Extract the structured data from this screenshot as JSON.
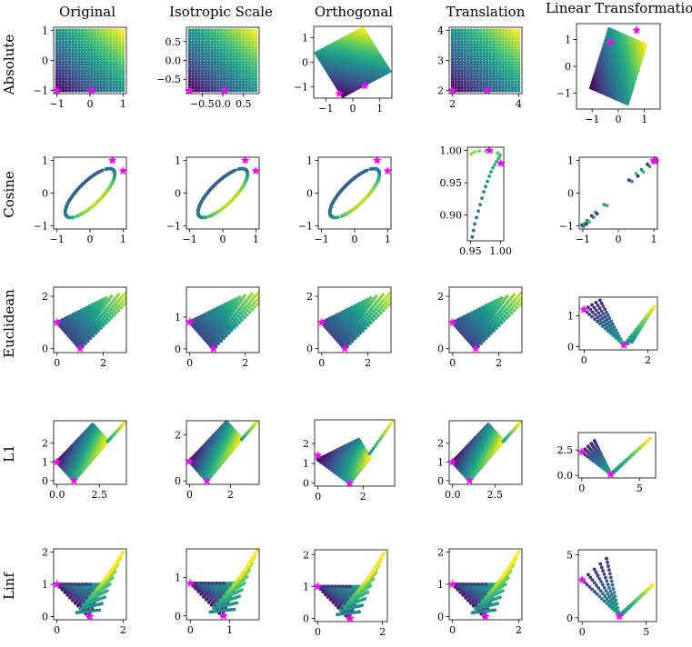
{
  "columns": [
    "Original",
    "Isotropic Scale",
    "Orthogonal",
    "Translation",
    "Linear Transformation"
  ],
  "rows": [
    "Absolute",
    "Cosine",
    "Euclidean",
    "L1",
    "Linf"
  ],
  "colors": {
    "marker": "#ff00ff",
    "colormap": "viridis"
  },
  "chart_data": [
    {
      "id": "absolute-original",
      "type": "scatter",
      "row": "Absolute",
      "column": "Original",
      "xlim": [
        -1.1,
        1.1
      ],
      "ylim": [
        -1.1,
        1.1
      ],
      "xticks": [
        -1,
        0,
        1
      ],
      "yticks": [
        -1,
        0,
        1
      ],
      "pattern": "grid",
      "grid_n": 22,
      "x_range": [
        -1,
        1
      ],
      "y_range": [
        -1,
        1
      ],
      "stars": [
        [
          -1,
          -1
        ],
        [
          0.05,
          -1
        ]
      ]
    },
    {
      "id": "absolute-isotropic",
      "type": "scatter",
      "row": "Absolute",
      "column": "Isotropic Scale",
      "xlim": [
        -0.88,
        0.88
      ],
      "ylim": [
        -0.88,
        0.88
      ],
      "xticks": [
        -0.5,
        0,
        0.5
      ],
      "yticks": [
        -0.5,
        0,
        0.5
      ],
      "xticklabels": [
        "−0.5",
        "0.0",
        "0.5"
      ],
      "yticklabels": [
        "−0.5",
        "0.0",
        "0.5"
      ],
      "pattern": "grid",
      "grid_n": 22,
      "x_range": [
        -0.8,
        0.8
      ],
      "y_range": [
        -0.8,
        0.8
      ],
      "stars": [
        [
          -0.8,
          -0.8
        ],
        [
          0.04,
          -0.8
        ]
      ]
    },
    {
      "id": "absolute-orthogonal",
      "type": "scatter",
      "row": "Absolute",
      "column": "Orthogonal",
      "xlim": [
        -1.45,
        1.45
      ],
      "ylim": [
        -1.45,
        1.45
      ],
      "xticks": [
        -1,
        0,
        1
      ],
      "yticks": [
        -1,
        0,
        1
      ],
      "pattern": "rotated-grid",
      "grid_n": 22,
      "angle_deg": 30,
      "stars": [
        [
          -0.5,
          -1.27
        ],
        [
          0.45,
          -0.95
        ]
      ]
    },
    {
      "id": "absolute-translation",
      "type": "scatter",
      "row": "Absolute",
      "column": "Translation",
      "xlim": [
        1.9,
        4.1
      ],
      "ylim": [
        1.9,
        4.1
      ],
      "xticks": [
        2,
        4
      ],
      "yticks": [
        2,
        3,
        4
      ],
      "pattern": "grid",
      "grid_n": 22,
      "x_range": [
        2,
        4
      ],
      "y_range": [
        2,
        4
      ],
      "stars": [
        [
          2,
          2
        ],
        [
          3.05,
          2
        ]
      ]
    },
    {
      "id": "absolute-linear",
      "type": "scatter",
      "row": "Absolute",
      "column": "Linear Transformation",
      "xlim": [
        -1.6,
        1.6
      ],
      "ylim": [
        -1.6,
        1.6
      ],
      "xticks": [
        -1,
        0,
        1
      ],
      "yticks": [
        -1,
        0,
        1
      ],
      "pattern": "linear-grid",
      "grid_n": 22,
      "matrix": [
        [
          0.7,
          0.35
        ],
        [
          -0.3,
          1.1
        ]
      ],
      "stars": [
        [
          -0.3,
          0.9
        ],
        [
          0.7,
          1.35
        ]
      ]
    },
    {
      "id": "cosine-original",
      "type": "scatter",
      "row": "Cosine",
      "column": "Original",
      "xlim": [
        -1.1,
        1.1
      ],
      "ylim": [
        -1.1,
        1.1
      ],
      "xticks": [
        -1,
        0,
        1
      ],
      "yticks": [
        -1,
        0,
        1
      ],
      "pattern": "ellipse",
      "ellipse": {
        "a": 1.2,
        "b": 0.42,
        "angle_deg": 45
      },
      "stars": [
        [
          0.68,
          1.0
        ],
        [
          1.0,
          0.68
        ]
      ]
    },
    {
      "id": "cosine-isotropic",
      "type": "scatter",
      "row": "Cosine",
      "column": "Isotropic Scale",
      "xlim": [
        -1.1,
        1.1
      ],
      "ylim": [
        -1.1,
        1.1
      ],
      "xticks": [
        -1,
        0,
        1
      ],
      "yticks": [
        -1,
        0,
        1
      ],
      "pattern": "ellipse",
      "ellipse": {
        "a": 1.2,
        "b": 0.42,
        "angle_deg": 45
      },
      "stars": [
        [
          0.68,
          1.0
        ],
        [
          1.0,
          0.68
        ]
      ]
    },
    {
      "id": "cosine-orthogonal",
      "type": "scatter",
      "row": "Cosine",
      "column": "Orthogonal",
      "xlim": [
        -1.1,
        1.1
      ],
      "ylim": [
        -1.1,
        1.1
      ],
      "xticks": [
        -1,
        0,
        1
      ],
      "yticks": [
        -1,
        0,
        1
      ],
      "pattern": "ellipse",
      "ellipse": {
        "a": 1.2,
        "b": 0.42,
        "angle_deg": 45
      },
      "stars": [
        [
          0.68,
          1.0
        ],
        [
          1.0,
          0.68
        ]
      ]
    },
    {
      "id": "cosine-translation",
      "type": "scatter",
      "row": "Cosine",
      "column": "Translation",
      "xlim": [
        0.945,
        1.005
      ],
      "ylim": [
        0.86,
        1.005
      ],
      "xticks": [
        0.95,
        1.0
      ],
      "yticks": [
        0.9,
        0.95,
        1.0
      ],
      "xticklabels": [
        "0.95",
        "1.00"
      ],
      "yticklabels": [
        "0.90",
        "0.95",
        "1.00"
      ],
      "pattern": "curve",
      "points": [
        [
          0.953,
          0.866
        ],
        [
          0.955,
          0.876
        ],
        [
          0.957,
          0.886
        ],
        [
          0.96,
          0.896
        ],
        [
          0.963,
          0.906
        ],
        [
          0.966,
          0.916
        ],
        [
          0.969,
          0.926
        ],
        [
          0.972,
          0.936
        ],
        [
          0.975,
          0.944
        ],
        [
          0.978,
          0.952
        ],
        [
          0.981,
          0.96
        ],
        [
          0.984,
          0.967
        ],
        [
          0.987,
          0.973
        ],
        [
          0.99,
          0.978
        ],
        [
          0.993,
          0.983
        ],
        [
          0.996,
          0.987
        ],
        [
          0.998,
          0.99
        ],
        [
          0.999,
          0.993
        ],
        [
          0.995,
          0.996
        ],
        [
          0.985,
          0.998
        ],
        [
          0.975,
          0.999
        ],
        [
          0.965,
          0.999
        ],
        [
          0.958,
          0.998
        ],
        [
          0.953,
          0.996
        ],
        [
          0.951,
          0.994
        ]
      ],
      "stars": [
        [
          0.981,
          1.0
        ],
        [
          1.0,
          0.98
        ]
      ]
    },
    {
      "id": "cosine-linear",
      "type": "scatter",
      "row": "Cosine",
      "column": "Linear Transformation",
      "xlim": [
        -1.1,
        1.1
      ],
      "ylim": [
        -1.1,
        1.1
      ],
      "xticks": [
        -1,
        0,
        1
      ],
      "yticks": [
        -1,
        0,
        1
      ],
      "pattern": "diagonal",
      "points": [
        [
          -1.02,
          -0.98
        ],
        [
          -0.98,
          -1.02
        ],
        [
          -0.95,
          -0.93
        ],
        [
          -0.9,
          -0.95
        ],
        [
          -0.88,
          -0.84
        ],
        [
          -0.82,
          -0.88
        ],
        [
          -0.75,
          -0.7
        ],
        [
          -0.7,
          -0.74
        ],
        [
          -0.65,
          -0.58
        ],
        [
          -0.6,
          -0.63
        ],
        [
          -0.4,
          -0.35
        ],
        [
          -0.32,
          -0.38
        ],
        [
          0.3,
          0.4
        ],
        [
          0.38,
          0.36
        ],
        [
          0.5,
          0.6
        ],
        [
          0.55,
          0.52
        ],
        [
          0.65,
          0.72
        ],
        [
          0.7,
          0.65
        ],
        [
          0.82,
          0.88
        ],
        [
          0.88,
          0.82
        ],
        [
          0.95,
          0.98
        ],
        [
          1.0,
          0.95
        ],
        [
          1.02,
          1.0
        ]
      ],
      "stars": [
        [
          1.0,
          1.0
        ],
        [
          1.05,
          0.98
        ]
      ]
    },
    {
      "id": "euclidean-original",
      "type": "scatter",
      "row": "Euclidean",
      "column": "Original",
      "xlim": [
        -0.15,
        3.0
      ],
      "ylim": [
        -0.15,
        2.35
      ],
      "xticks": [
        0,
        2
      ],
      "yticks": [
        0,
        2
      ],
      "pattern": "euclid",
      "shape": {
        "sx": 1.0,
        "tip": [
          2.9,
          2.25
        ],
        "notch": [
          2.05,
          2.2
        ]
      },
      "stars": [
        [
          0,
          1.0
        ],
        [
          1.0,
          0
        ]
      ]
    },
    {
      "id": "euclidean-isotropic",
      "type": "scatter",
      "row": "Euclidean",
      "column": "Isotropic Scale",
      "xlim": [
        -0.12,
        2.5
      ],
      "ylim": [
        -0.12,
        1.95
      ],
      "xticks": [
        0,
        2
      ],
      "yticks": [
        0,
        1
      ],
      "pattern": "euclid",
      "shape": {
        "sx": 0.85,
        "tip": [
          2.45,
          1.9
        ],
        "notch": [
          1.75,
          1.85
        ]
      },
      "stars": [
        [
          0,
          0.85
        ],
        [
          0.85,
          0
        ]
      ]
    },
    {
      "id": "euclidean-orthogonal",
      "type": "scatter",
      "row": "Euclidean",
      "column": "Orthogonal",
      "xlim": [
        -0.15,
        3.0
      ],
      "ylim": [
        -0.15,
        2.35
      ],
      "xticks": [
        0,
        2
      ],
      "yticks": [
        0,
        2
      ],
      "pattern": "euclid",
      "shape": {
        "sx": 1.0,
        "tip": [
          2.9,
          2.25
        ],
        "notch": [
          2.05,
          2.2
        ]
      },
      "stars": [
        [
          0,
          1.0
        ],
        [
          1.0,
          0
        ]
      ]
    },
    {
      "id": "euclidean-translation",
      "type": "scatter",
      "row": "Euclidean",
      "column": "Translation",
      "xlim": [
        -0.15,
        3.0
      ],
      "ylim": [
        -0.15,
        2.35
      ],
      "xticks": [
        0,
        2
      ],
      "yticks": [
        0,
        2
      ],
      "pattern": "euclid",
      "shape": {
        "sx": 1.0,
        "tip": [
          2.9,
          2.25
        ],
        "notch": [
          2.05,
          2.2
        ]
      },
      "stars": [
        [
          0,
          1.0
        ],
        [
          1.0,
          0
        ]
      ]
    },
    {
      "id": "euclidean-linear",
      "type": "scatter",
      "row": "Euclidean",
      "column": "Linear Transformation",
      "xlim": [
        -0.15,
        2.3
      ],
      "ylim": [
        -0.1,
        1.6
      ],
      "xticks": [
        0,
        2
      ],
      "yticks": [
        0,
        1
      ],
      "pattern": "vshape",
      "shape": {
        "left_top": [
          0,
          1.2
        ],
        "left_top2": [
          0.5,
          1.5
        ],
        "vertex": [
          1.25,
          0.05
        ],
        "right_top": [
          2.2,
          1.3
        ]
      },
      "stars": [
        [
          0,
          1.2
        ],
        [
          1.25,
          0.05
        ]
      ]
    },
    {
      "id": "l1-original",
      "type": "scatter",
      "row": "L1",
      "column": "Original",
      "xlim": [
        -0.2,
        4.1
      ],
      "ylim": [
        -0.2,
        3.2
      ],
      "xticks": [
        0,
        2.5
      ],
      "yticks": [
        0,
        1,
        2
      ],
      "xticklabels": [
        "0.0",
        "2.5"
      ],
      "pattern": "l1",
      "shape": {
        "s": 1.0,
        "apex": [
          2.1,
          3.0
        ],
        "notch": [
          3.0,
          2.1
        ],
        "tip": [
          4.0,
          3.1
        ]
      },
      "stars": [
        [
          0,
          1.0
        ],
        [
          1.0,
          0
        ]
      ]
    },
    {
      "id": "l1-isotropic",
      "type": "scatter",
      "row": "L1",
      "column": "Isotropic Scale",
      "xlim": [
        -0.15,
        3.4
      ],
      "ylim": [
        -0.15,
        2.6
      ],
      "xticks": [
        0,
        2
      ],
      "yticks": [
        0,
        2
      ],
      "pattern": "l1",
      "shape": {
        "s": 0.85,
        "apex": [
          1.8,
          2.55
        ],
        "notch": [
          2.55,
          1.8
        ],
        "tip": [
          3.35,
          2.6
        ]
      },
      "stars": [
        [
          0,
          0.85
        ],
        [
          0.85,
          0
        ]
      ]
    },
    {
      "id": "l1-orthogonal",
      "type": "scatter",
      "row": "L1",
      "column": "Orthogonal",
      "xlim": [
        -0.15,
        3.4
      ],
      "ylim": [
        -0.15,
        3.2
      ],
      "xticks": [
        0,
        2
      ],
      "yticks": [
        0,
        1,
        2
      ],
      "pattern": "l1-skew",
      "shape": {
        "s": 1.4,
        "apex": [
          1.8,
          2.6
        ],
        "notch": [
          2.3,
          1.5
        ],
        "tip": [
          3.3,
          3.1
        ]
      },
      "stars": [
        [
          0,
          1.4
        ],
        [
          1.4,
          0
        ]
      ]
    },
    {
      "id": "l1-translation",
      "type": "scatter",
      "row": "L1",
      "column": "Translation",
      "xlim": [
        -0.2,
        4.1
      ],
      "ylim": [
        -0.2,
        3.2
      ],
      "xticks": [
        0,
        2.5
      ],
      "yticks": [
        0,
        1,
        2
      ],
      "xticklabels": [
        "0.0",
        "2.5"
      ],
      "pattern": "l1",
      "shape": {
        "s": 1.0,
        "apex": [
          2.1,
          3.0
        ],
        "notch": [
          3.0,
          2.1
        ],
        "tip": [
          4.0,
          3.1
        ]
      },
      "stars": [
        [
          0,
          1.0
        ],
        [
          1.0,
          0
        ]
      ]
    },
    {
      "id": "l1-linear",
      "type": "scatter",
      "row": "L1",
      "column": "Linear Transformation",
      "xlim": [
        -0.3,
        6.4
      ],
      "ylim": [
        -0.25,
        4.2
      ],
      "xticks": [
        0,
        5
      ],
      "yticks": [
        0,
        2.5
      ],
      "xticklabels": [
        "0",
        "5"
      ],
      "yticklabels": [
        "0.0",
        "2.5"
      ],
      "pattern": "vshape",
      "shape": {
        "left_top": [
          0,
          2.3
        ],
        "left_top2": [
          1.1,
          3.4
        ],
        "vertex": [
          2.5,
          0.15
        ],
        "right_top": [
          5.9,
          3.6
        ]
      },
      "stars": [
        [
          0,
          2.3
        ],
        [
          2.5,
          0.1
        ]
      ]
    },
    {
      "id": "linf-original",
      "type": "scatter",
      "row": "Linf",
      "column": "Original",
      "xlim": [
        -0.1,
        2.1
      ],
      "ylim": [
        -0.1,
        2.1
      ],
      "xticks": [
        0,
        2
      ],
      "yticks": [
        0,
        1,
        2
      ],
      "pattern": "linf",
      "shape": {
        "s": 1.0,
        "top": [
          2.0,
          2.0
        ],
        "corner": [
          0.85,
          1.0
        ]
      },
      "stars": [
        [
          0,
          1.0
        ],
        [
          1.0,
          0
        ]
      ]
    },
    {
      "id": "linf-isotropic",
      "type": "scatter",
      "row": "Linf",
      "column": "Isotropic Scale",
      "xlim": [
        -0.1,
        1.75
      ],
      "ylim": [
        -0.1,
        1.75
      ],
      "xticks": [
        0,
        1
      ],
      "yticks": [
        0,
        1
      ],
      "pattern": "linf",
      "shape": {
        "s": 0.85,
        "top": [
          1.7,
          1.7
        ],
        "corner": [
          0.72,
          0.85
        ]
      },
      "stars": [
        [
          0,
          0.85
        ],
        [
          0.85,
          0
        ]
      ]
    },
    {
      "id": "linf-orthogonal",
      "type": "scatter",
      "row": "Linf",
      "column": "Orthogonal",
      "xlim": [
        -0.1,
        2.15
      ],
      "ylim": [
        -0.1,
        2.15
      ],
      "xticks": [
        0,
        2
      ],
      "yticks": [
        0,
        1,
        2
      ],
      "pattern": "linf",
      "shape": {
        "s": 1.0,
        "top": [
          2.05,
          2.05
        ],
        "corner": [
          0.85,
          1.0
        ]
      },
      "stars": [
        [
          0,
          1.0
        ],
        [
          1.0,
          0
        ]
      ]
    },
    {
      "id": "linf-translation",
      "type": "scatter",
      "row": "Linf",
      "column": "Translation",
      "xlim": [
        -0.1,
        2.1
      ],
      "ylim": [
        -0.1,
        2.1
      ],
      "xticks": [
        0,
        2
      ],
      "yticks": [
        0,
        1,
        2
      ],
      "pattern": "linf",
      "shape": {
        "s": 1.0,
        "top": [
          2.0,
          2.0
        ],
        "corner": [
          0.85,
          1.0
        ]
      },
      "stars": [
        [
          0,
          1.0
        ],
        [
          1.0,
          0
        ]
      ]
    },
    {
      "id": "linf-linear",
      "type": "scatter",
      "row": "Linf",
      "column": "Linear Transformation",
      "xlim": [
        -0.3,
        5.8
      ],
      "ylim": [
        -0.3,
        5.4
      ],
      "xticks": [
        0,
        5
      ],
      "yticks": [
        0,
        5
      ],
      "pattern": "vshape",
      "shape": {
        "left_top": [
          0,
          3.0
        ],
        "left_top2": [
          1.9,
          4.7
        ],
        "vertex": [
          2.9,
          0.2
        ],
        "right_top": [
          5.5,
          2.6
        ]
      },
      "stars": [
        [
          0,
          3.0
        ],
        [
          2.9,
          0.1
        ]
      ]
    }
  ]
}
